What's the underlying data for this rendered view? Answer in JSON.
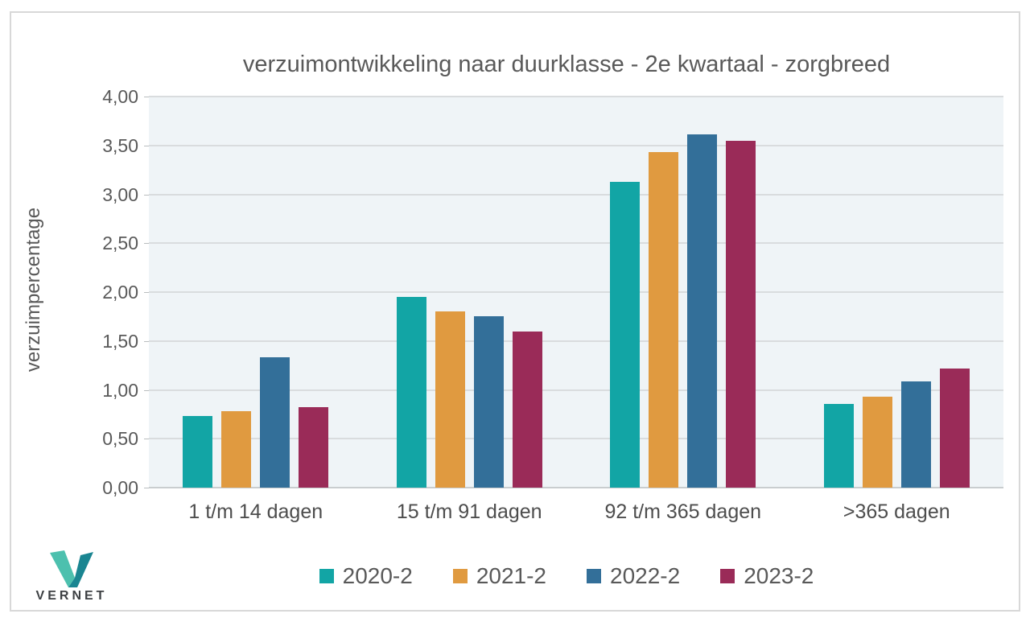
{
  "chart_data": {
    "type": "bar",
    "title": "verzuimontwikkeling naar duurklasse - 2e kwartaal - zorgbreed",
    "ylabel": "verzuimpercentage",
    "xlabel": "",
    "ylim": [
      0,
      4
    ],
    "ytick_step": 0.5,
    "yticks_top_to_bottom": [
      "4,00",
      "3,50",
      "3,00",
      "2,50",
      "2,00",
      "1,50",
      "1,00",
      "0,50",
      "0,00"
    ],
    "grid": true,
    "plot_background": "#eff4f7",
    "gridline_color": "#d9dcde",
    "legend_position": "bottom",
    "categories": [
      "1 t/m 14 dagen",
      "15 t/m 91 dagen",
      "92 t/m 365 dagen",
      ">365 dagen"
    ],
    "series": [
      {
        "name": "2020-2",
        "color": "#12a5a5",
        "values": [
          0.73,
          1.95,
          3.13,
          0.86
        ]
      },
      {
        "name": "2021-2",
        "color": "#e09a40",
        "values": [
          0.78,
          1.8,
          3.43,
          0.93
        ]
      },
      {
        "name": "2022-2",
        "color": "#336f99",
        "values": [
          1.33,
          1.75,
          3.61,
          1.09
        ]
      },
      {
        "name": "2023-2",
        "color": "#9a2b58",
        "values": [
          0.82,
          1.6,
          3.55,
          1.22
        ]
      }
    ]
  },
  "logo": {
    "text": "VERNET",
    "mark_color_left": "#4cc0ae",
    "mark_color_right": "#1a8591"
  },
  "frame": {
    "border_color": "#d8d8d8",
    "background": "#ffffff"
  }
}
